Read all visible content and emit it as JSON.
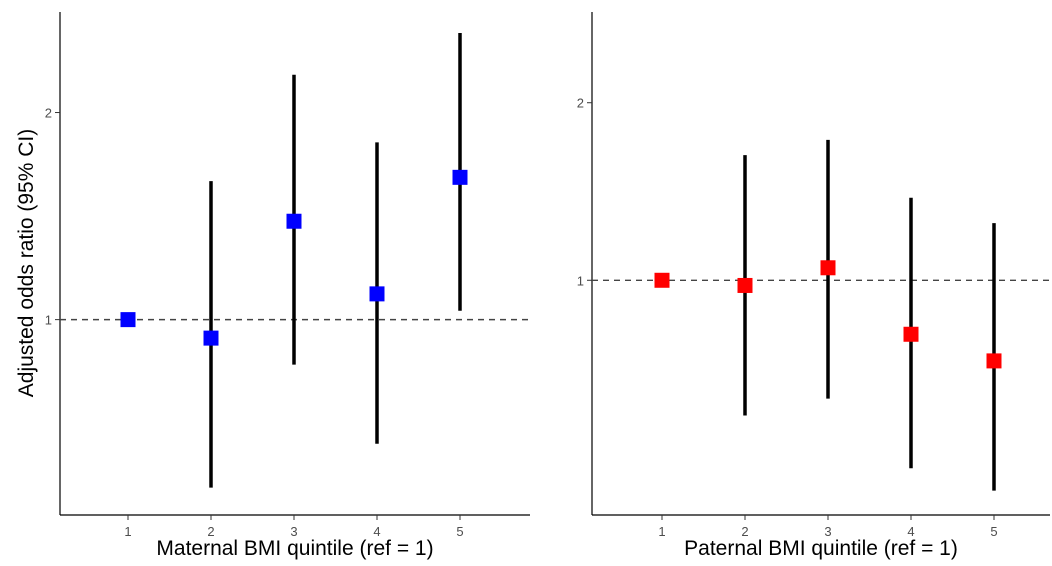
{
  "chart_data": [
    {
      "type": "scatter",
      "title": "",
      "xlabel": "Maternal BMI quintile (ref = 1)",
      "ylabel": "Adjusted odds ratio (95% CI)",
      "categories": [
        "1",
        "2",
        "3",
        "4",
        "5"
      ],
      "y_scale": "log",
      "ylim": [
        0.52,
        2.8
      ],
      "yticks": [
        1,
        2
      ],
      "ytick_labels": [
        "1",
        "2"
      ],
      "reference_line": 1,
      "grid": false,
      "point_color": "#0000ff",
      "series": [
        {
          "estimate": [
            1.0,
            0.94,
            1.39,
            1.09,
            1.61
          ],
          "ci_lower": [
            1.0,
            0.57,
            0.86,
            0.66,
            1.03
          ],
          "ci_upper": [
            1.0,
            1.59,
            2.27,
            1.81,
            2.61
          ]
        }
      ]
    },
    {
      "type": "scatter",
      "title": "",
      "xlabel": "Paternal BMI quintile (ref = 1)",
      "ylabel": "",
      "categories": [
        "1",
        "2",
        "3",
        "4",
        "5"
      ],
      "y_scale": "log",
      "ylim": [
        0.4,
        2.85
      ],
      "yticks": [
        1,
        2
      ],
      "ytick_labels": [
        "1",
        "2"
      ],
      "reference_line": 1,
      "grid": false,
      "point_color": "#ff0000",
      "series": [
        {
          "estimate": [
            1.0,
            0.98,
            1.05,
            0.81,
            0.73
          ],
          "ci_lower": [
            1.0,
            0.59,
            0.63,
            0.48,
            0.44
          ],
          "ci_upper": [
            1.0,
            1.63,
            1.73,
            1.38,
            1.25
          ]
        }
      ]
    }
  ]
}
